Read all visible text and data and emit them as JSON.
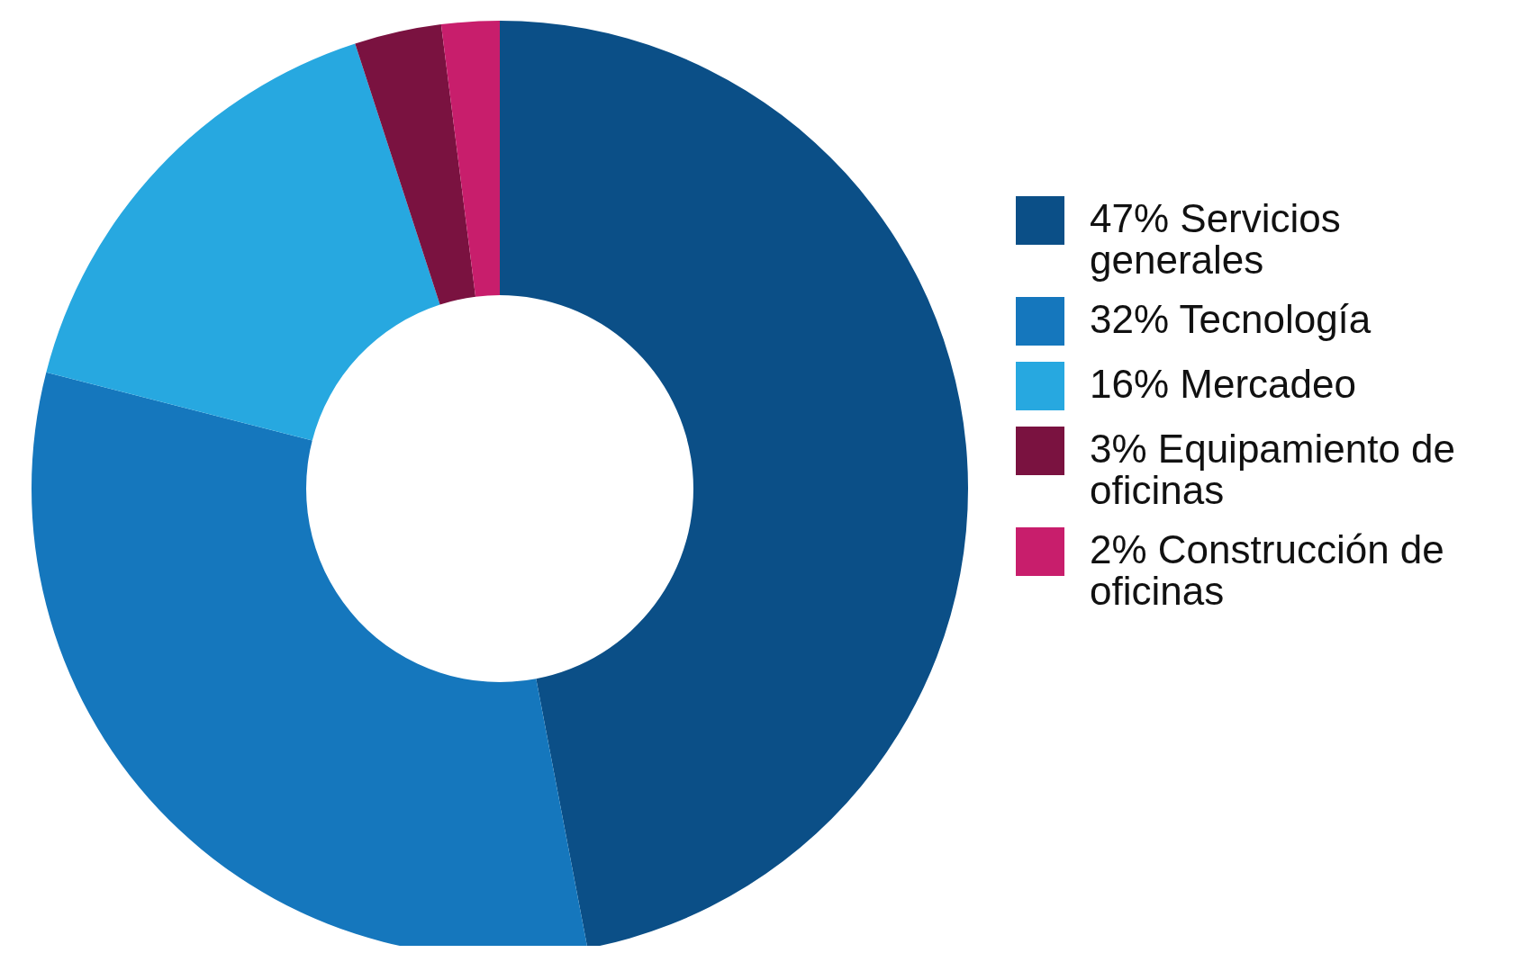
{
  "chart_data": {
    "type": "donut",
    "categories": [
      "47% Servicios generales",
      "32% Tecnología",
      "16% Mercadeo",
      "3% Equipamiento de oficinas",
      "2% Construcción de oficinas"
    ],
    "values": [
      47,
      32,
      16,
      3,
      2
    ],
    "colors": [
      "#0b4f87",
      "#1577bd",
      "#27a8e0",
      "#7a1240",
      "#c81e6c"
    ],
    "legend": "right"
  }
}
